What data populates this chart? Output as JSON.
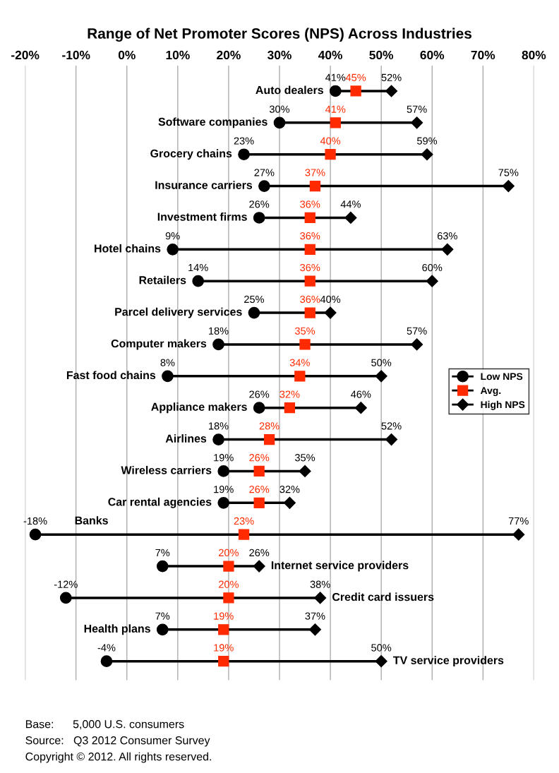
{
  "chart_data": {
    "type": "scatter",
    "orientation": "horizontal",
    "title": "Range of Net Promoter Scores (NPS) Across Industries",
    "categories": [
      "Auto dealers",
      "Software companies",
      "Grocery chains",
      "Insurance carriers",
      "Investment firms",
      "Hotel chains",
      "Retailers",
      "Parcel delivery services",
      "Computer makers",
      "Fast food chains",
      "Appliance makers",
      "Airlines",
      "Wireless carriers",
      "Car rental agencies",
      "Banks",
      "Internet service providers",
      "Credit card issuers",
      "Health plans",
      "TV service providers"
    ],
    "series": [
      {
        "name": "Low NPS",
        "color": "#000000",
        "marker": "circle",
        "values": [
          41,
          30,
          23,
          27,
          26,
          9,
          14,
          25,
          18,
          8,
          26,
          18,
          19,
          19,
          -18,
          7,
          -12,
          7,
          -4
        ],
        "value_labels": [
          "41%",
          "30%",
          "23%",
          "27%",
          "26%",
          "9%",
          "14%",
          "25%",
          "18%",
          "8%",
          "26%",
          "18%",
          "19%",
          "19%",
          "-18%",
          "7%",
          "-12%",
          "7%",
          "-4%"
        ]
      },
      {
        "name": "Avg.",
        "color": "#ff2a00",
        "marker": "square",
        "values": [
          45,
          41,
          40,
          37,
          36,
          36,
          36,
          36,
          35,
          34,
          32,
          28,
          26,
          26,
          23,
          20,
          20,
          19,
          19
        ],
        "value_labels": [
          "45%",
          "41%",
          "40%",
          "37%",
          "36%",
          "36%",
          "36%",
          "36%",
          "35%",
          "34%",
          "32%",
          "28%",
          "26%",
          "26%",
          "23%",
          "20%",
          "20%",
          "19%",
          "19%"
        ]
      },
      {
        "name": "High NPS",
        "color": "#000000",
        "marker": "diamond",
        "values": [
          52,
          57,
          59,
          75,
          44,
          63,
          60,
          40,
          57,
          50,
          46,
          52,
          35,
          32,
          77,
          26,
          38,
          37,
          50
        ],
        "value_labels": [
          "52%",
          "57%",
          "59%",
          "75%",
          "44%",
          "63%",
          "60%",
          "40%",
          "57%",
          "50%",
          "46%",
          "52%",
          "35%",
          "32%",
          "77%",
          "26%",
          "38%",
          "37%",
          "50%"
        ]
      }
    ],
    "xlim": [
      -20,
      80
    ],
    "xticks": [
      {
        "value": -20,
        "label": "-20%"
      },
      {
        "value": -10,
        "label": "-10%"
      },
      {
        "value": 0,
        "label": "0%"
      },
      {
        "value": 10,
        "label": "10%"
      },
      {
        "value": 20,
        "label": "20%"
      },
      {
        "value": 30,
        "label": "30%"
      },
      {
        "value": 40,
        "label": "40%"
      },
      {
        "value": 50,
        "label": "50%"
      },
      {
        "value": 60,
        "label": "60%"
      },
      {
        "value": 70,
        "label": "70%"
      },
      {
        "value": 80,
        "label": "80%"
      }
    ],
    "grid": "x",
    "legend": "right",
    "annotations": [
      "Base:      5,000 U.S. consumers",
      "Source:   Q3 2012 Consumer Survey",
      "Copyright © 2012. All rights reserved."
    ]
  }
}
